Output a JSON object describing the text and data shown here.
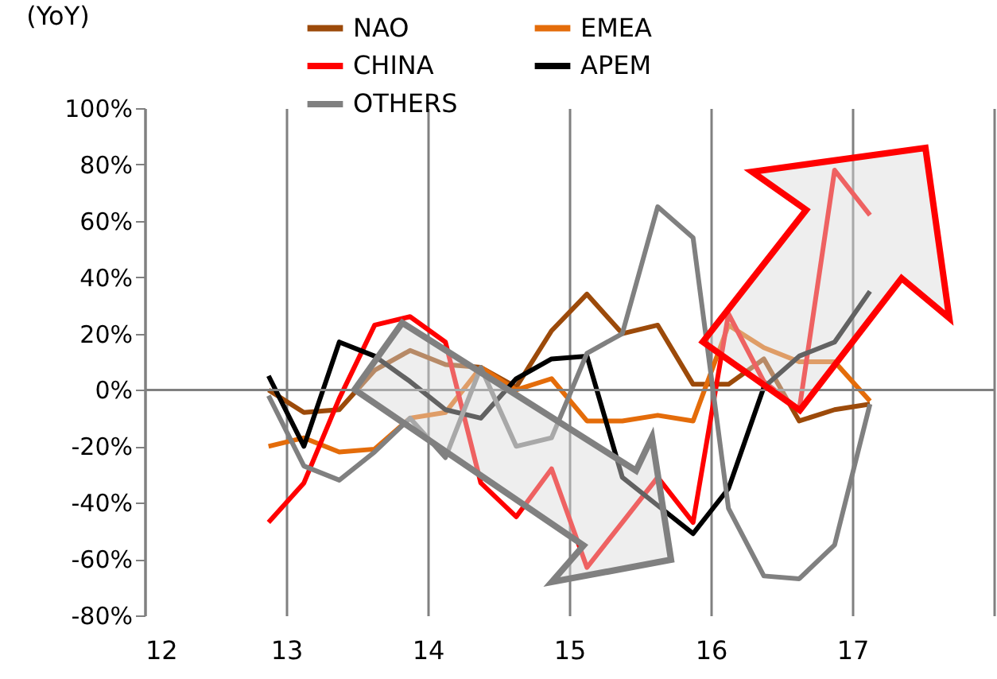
{
  "chart_data": {
    "type": "line",
    "ylabel": "(YoY)",
    "x": [
      12.875,
      13.125,
      13.375,
      13.625,
      13.875,
      14.125,
      14.375,
      14.625,
      14.875,
      15.125,
      15.375,
      15.625,
      15.875,
      16.125,
      16.375,
      16.625,
      16.875,
      17.125
    ],
    "series": [
      {
        "name": "NAO",
        "color": "#9c4a0a",
        "values": [
          0,
          -8,
          -7,
          7,
          14,
          9,
          8,
          1,
          21,
          34,
          20,
          23,
          2,
          2,
          11,
          -11,
          -7,
          -5
        ]
      },
      {
        "name": "EMEA",
        "color": "#e46c0a",
        "values": [
          -20,
          -17,
          -22,
          -21,
          -10,
          -8,
          8,
          0,
          4,
          -11,
          -11,
          -9,
          -11,
          23,
          15,
          10,
          10,
          -4
        ]
      },
      {
        "name": "CHINA",
        "color": "#ff0000",
        "values": [
          -47,
          -33,
          -3,
          23,
          26,
          17,
          -33,
          -45,
          -28,
          -63,
          -47,
          -31,
          -47,
          27,
          3,
          -7,
          78,
          62
        ]
      },
      {
        "name": "APEM",
        "color": "#000000",
        "values": [
          5,
          -20,
          17,
          12,
          3,
          -7,
          -10,
          4,
          11,
          12,
          -31,
          -41,
          -51,
          -35,
          1,
          12,
          17,
          35
        ]
      },
      {
        "name": "OTHERS",
        "color": "#808080",
        "values": [
          -2,
          -27,
          -32,
          -22,
          -10,
          -24,
          8,
          -20,
          -17,
          13,
          20,
          65,
          54,
          -42,
          -66,
          -67,
          -55,
          -5
        ]
      }
    ],
    "xlim": [
      12,
      18
    ],
    "xticks": [
      12,
      13,
      14,
      15,
      16,
      17,
      {
        "value": 18,
        "label": null
      }
    ],
    "ylim": [
      -80,
      100
    ],
    "yticks": [
      {
        "value": -80,
        "label": "-80%"
      },
      {
        "value": -60,
        "label": "-60%"
      },
      {
        "value": -40,
        "label": "-40%"
      },
      {
        "value": -20,
        "label": "-20%"
      },
      {
        "value": 0,
        "label": "0%"
      },
      {
        "value": 20,
        "label": "20%"
      },
      {
        "value": 40,
        "label": "40%"
      },
      {
        "value": 60,
        "label": "60%"
      },
      {
        "value": 80,
        "label": "80%"
      },
      {
        "value": 100,
        "label": "100%"
      }
    ],
    "ref_lines": [
      {
        "axis": "y",
        "value": 0,
        "color": "#808080"
      }
    ],
    "grid": "x",
    "legend": "top",
    "marker": "none",
    "line_style": "solid"
  }
}
